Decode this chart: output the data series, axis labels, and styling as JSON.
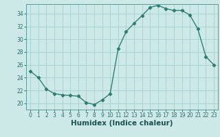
{
  "x": [
    0,
    1,
    2,
    3,
    4,
    5,
    6,
    7,
    8,
    9,
    10,
    11,
    12,
    13,
    14,
    15,
    16,
    17,
    18,
    19,
    20,
    21,
    22,
    23
  ],
  "y": [
    25.0,
    24.0,
    22.2,
    21.5,
    21.3,
    21.2,
    21.1,
    20.1,
    19.8,
    20.5,
    21.5,
    28.5,
    31.2,
    32.5,
    33.7,
    35.0,
    35.3,
    34.8,
    34.5,
    34.5,
    33.8,
    31.6,
    27.3,
    26.0
  ],
  "line_color": "#2e7d6e",
  "marker": "D",
  "marker_size": 2.2,
  "bg_color": "#cce9e7",
  "grid_color": "#a8d4d0",
  "xlabel": "Humidex (Indice chaleur)",
  "ylim": [
    19.0,
    35.5
  ],
  "xlim": [
    -0.5,
    23.5
  ],
  "yticks": [
    20,
    22,
    24,
    26,
    28,
    30,
    32,
    34
  ],
  "xticks": [
    0,
    1,
    2,
    3,
    4,
    5,
    6,
    7,
    8,
    9,
    10,
    11,
    12,
    13,
    14,
    15,
    16,
    17,
    18,
    19,
    20,
    21,
    22,
    23
  ],
  "tick_label_size": 5.5,
  "xlabel_size": 7.5,
  "line_width": 1.0
}
